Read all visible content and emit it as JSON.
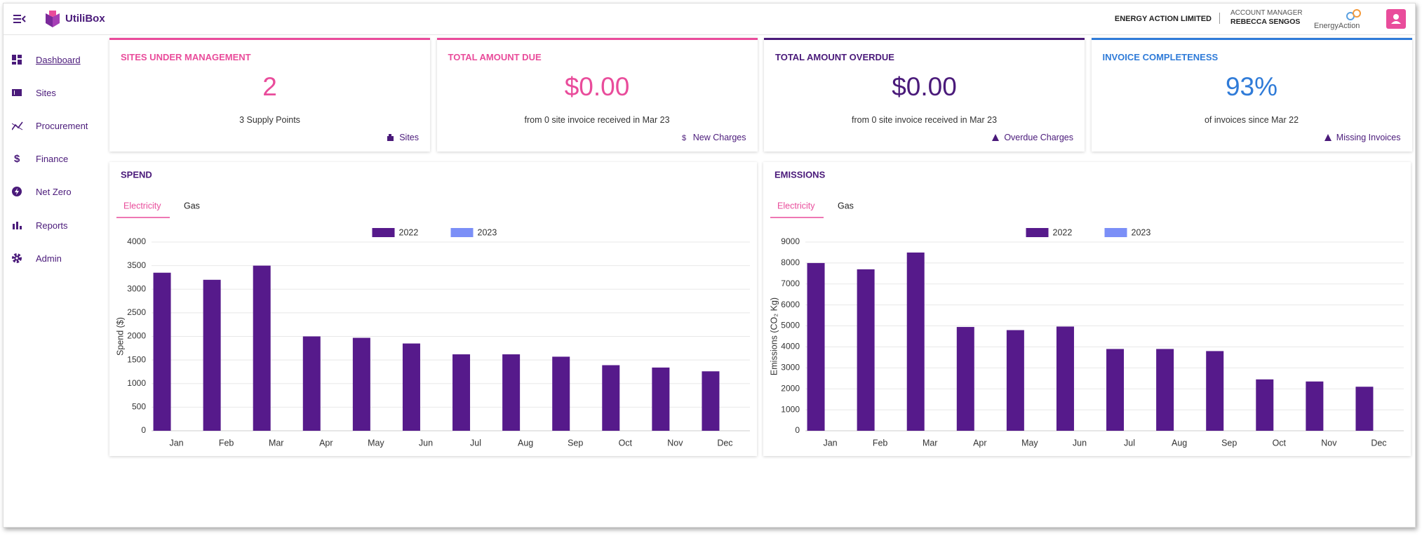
{
  "header": {
    "brand": "UtiliBox",
    "company": "ENERGY ACTION LIMITED",
    "manager_label": "ACCOUNT MANAGER",
    "manager_name": "REBECCA SENGOS",
    "logo_text": "EnergyAction"
  },
  "nav": [
    "Dashboard",
    "Sites",
    "Procurement",
    "Finance",
    "Net Zero",
    "Reports",
    "Admin"
  ],
  "cards": [
    {
      "title": "SITES UNDER MANAGEMENT",
      "value": "2",
      "subtitle": "3 Supply Points",
      "link": "Sites",
      "color": "#e94c9b",
      "border": "#e94c9b"
    },
    {
      "title": "TOTAL AMOUNT DUE",
      "value": "$0.00",
      "subtitle": "from 0 site invoice received in Mar 23",
      "link": "New Charges",
      "color": "#e94c9b",
      "border": "#e94c9b"
    },
    {
      "title": "TOTAL AMOUNT OVERDUE",
      "value": "$0.00",
      "subtitle": "from 0 site invoice received in Mar 23",
      "link": "Overdue Charges",
      "color": "#4a1a7a",
      "border": "#4a1a7a"
    },
    {
      "title": "INVOICE COMPLETENESS",
      "value": "93%",
      "subtitle": "of invoices since Mar 22",
      "link": "Missing Invoices",
      "color": "#2f7bd8",
      "border": "#2f7bd8"
    }
  ],
  "chart_data": [
    {
      "type": "bar",
      "title": "SPEND",
      "tabs": [
        "Electricity",
        "Gas"
      ],
      "y_label": "Spend ($)",
      "categories": [
        "Jan",
        "Feb",
        "Mar",
        "Apr",
        "May",
        "Jun",
        "Jul",
        "Aug",
        "Sep",
        "Oct",
        "Nov",
        "Dec"
      ],
      "series": [
        {
          "name": "2022",
          "color": "#561a8b",
          "values": [
            3350,
            3200,
            3500,
            2000,
            1970,
            1850,
            1620,
            1620,
            1570,
            1390,
            1340,
            1260
          ]
        },
        {
          "name": "2023",
          "color": "#7b8ff7",
          "values": [
            null,
            null,
            null,
            null,
            null,
            null,
            null,
            null,
            null,
            null,
            null,
            null
          ]
        }
      ],
      "ylim": [
        0,
        4000
      ],
      "yticks": [
        0,
        500,
        1000,
        1500,
        2000,
        2500,
        3000,
        3500,
        4000
      ],
      "grid": true
    },
    {
      "type": "bar",
      "title": "EMISSIONS",
      "tabs": [
        "Electricity",
        "Gas"
      ],
      "y_label": "Emissions (CO₂ Kg)",
      "categories": [
        "Jan",
        "Feb",
        "Mar",
        "Apr",
        "May",
        "Jun",
        "Jul",
        "Aug",
        "Sep",
        "Oct",
        "Nov",
        "Dec"
      ],
      "series": [
        {
          "name": "2022",
          "color": "#561a8b",
          "values": [
            8000,
            7700,
            8500,
            4950,
            4800,
            4970,
            3900,
            3900,
            3800,
            2450,
            2350,
            2100
          ]
        },
        {
          "name": "2023",
          "color": "#7b8ff7",
          "values": [
            null,
            null,
            null,
            null,
            null,
            null,
            null,
            null,
            null,
            null,
            null,
            null
          ]
        }
      ],
      "ylim": [
        0,
        9000
      ],
      "yticks": [
        0,
        1000,
        2000,
        3000,
        4000,
        5000,
        6000,
        7000,
        8000,
        9000
      ],
      "grid": true
    }
  ]
}
